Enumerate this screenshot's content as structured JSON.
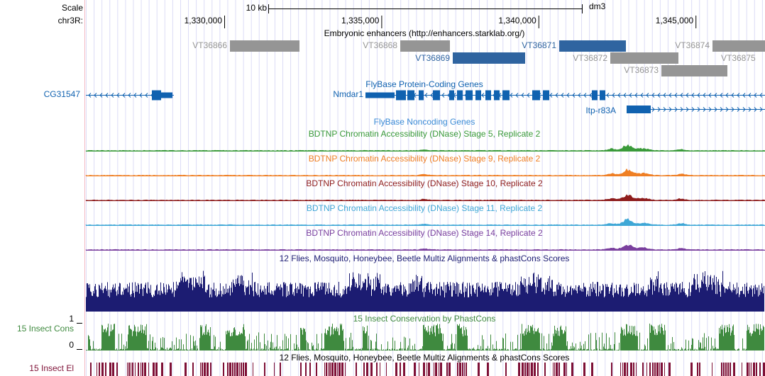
{
  "scale": {
    "label": "Scale",
    "size": "10 kb",
    "assembly": "dm3"
  },
  "ruler": {
    "chrom": "chr3R:",
    "ticks": [
      {
        "value": 1330000,
        "label": "1,330,000"
      },
      {
        "value": 1335000,
        "label": "1,335,000"
      },
      {
        "value": 1340000,
        "label": "1,340,000"
      },
      {
        "value": 1345000,
        "label": "1,345,000"
      }
    ]
  },
  "enhancers": {
    "title": "Embryonic enhancers (http://enhancers.starklab.org/)",
    "items": [
      "VT36866",
      "VT36868",
      "VT36869",
      "VT36871",
      "VT36872",
      "VT36873",
      "VT36874",
      "VT36875"
    ]
  },
  "genes": {
    "title": "FlyBase Protein-Coding Genes",
    "items": [
      "CG31547",
      "Nmdar1",
      "Itp-r83A"
    ]
  },
  "noncoding": {
    "title": "FlyBase Noncoding Genes"
  },
  "dnase": [
    {
      "title": "BDTNP Chromatin Accessibility (DNase) Stage 5, Replicate 2",
      "color": "#3a9a3a"
    },
    {
      "title": "BDTNP Chromatin Accessibility (DNase) Stage 9, Replicate 2",
      "color": "#ef7f24"
    },
    {
      "title": "BDTNP Chromatin Accessibility (DNase) Stage 10, Replicate 2",
      "color": "#8e1c1c"
    },
    {
      "title": "BDTNP Chromatin Accessibility (DNase) Stage 11, Replicate 2",
      "color": "#3fa7d6"
    },
    {
      "title": "BDTNP Chromatin Accessibility (DNase) Stage 14, Replicate 2",
      "color": "#7a3f9e"
    }
  ],
  "multiz": {
    "title": "12 Flies, Mosquito, Honeybee, Beetle Multiz Alignments & phastCons Scores"
  },
  "conservation": {
    "title": "15 Insect Conservation by PhastCons",
    "label": "15 Insect Cons",
    "max": 1,
    "min": 0
  },
  "elements": {
    "title": "12 Flies, Mosquito, Honeybee, Beetle Multiz Alignments & phastCons Scores",
    "label": "15 Insect El"
  }
}
